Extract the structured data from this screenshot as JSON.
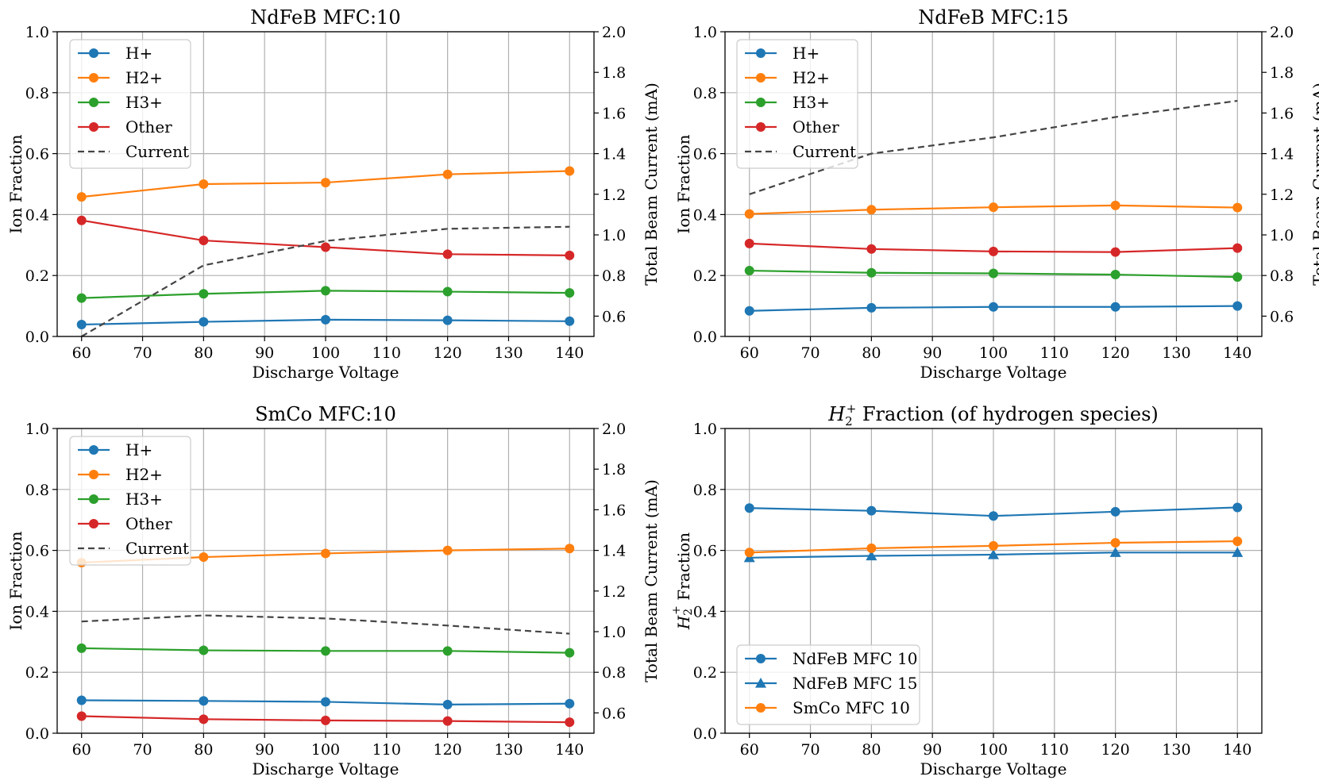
{
  "figure": {
    "panels_count": 4
  },
  "chart_data": [
    {
      "type": "line",
      "title": "NdFeB MFC:10",
      "xlabel": "Discharge Voltage",
      "ylabel": "Ion Fraction",
      "y2label": "Total Beam Current (mA)",
      "xlim": [
        56,
        144
      ],
      "ylim": [
        0,
        1.0
      ],
      "y2lim": [
        0.5,
        2.0
      ],
      "xticks": [
        60,
        70,
        80,
        90,
        100,
        110,
        120,
        130,
        140
      ],
      "yticks": [
        0.0,
        0.2,
        0.4,
        0.6,
        0.8,
        1.0
      ],
      "y2ticks": [
        0.6,
        0.8,
        1.0,
        1.2,
        1.4,
        1.6,
        1.8,
        2.0
      ],
      "grid": true,
      "legend_position": "top-left",
      "x": [
        60,
        80,
        100,
        120,
        140
      ],
      "series": [
        {
          "name": "H+",
          "color": "#1f77b4",
          "marker": "circle",
          "axis": "left",
          "values": [
            0.039,
            0.048,
            0.055,
            0.053,
            0.05
          ]
        },
        {
          "name": "H2+",
          "color": "#ff7f0e",
          "marker": "circle",
          "axis": "left",
          "values": [
            0.458,
            0.5,
            0.505,
            0.532,
            0.543
          ]
        },
        {
          "name": "H3+",
          "color": "#2ca02c",
          "marker": "circle",
          "axis": "left",
          "values": [
            0.126,
            0.14,
            0.15,
            0.147,
            0.143
          ]
        },
        {
          "name": "Other",
          "color": "#d62728",
          "marker": "circle",
          "axis": "left",
          "values": [
            0.381,
            0.315,
            0.293,
            0.27,
            0.266
          ]
        },
        {
          "name": "Current",
          "color": "#444444",
          "marker": "none",
          "dashed": true,
          "axis": "right",
          "values": [
            0.5,
            0.85,
            0.97,
            1.03,
            1.04
          ]
        }
      ]
    },
    {
      "type": "line",
      "title": "NdFeB MFC:15",
      "xlabel": "Discharge Voltage",
      "ylabel": "Ion Fraction",
      "y2label": "Total Beam Current (mA)",
      "xlim": [
        56,
        144
      ],
      "ylim": [
        0,
        1.0
      ],
      "y2lim": [
        0.5,
        2.0
      ],
      "xticks": [
        60,
        70,
        80,
        90,
        100,
        110,
        120,
        130,
        140
      ],
      "yticks": [
        0.0,
        0.2,
        0.4,
        0.6,
        0.8,
        1.0
      ],
      "y2ticks": [
        0.6,
        0.8,
        1.0,
        1.2,
        1.4,
        1.6,
        1.8,
        2.0
      ],
      "grid": true,
      "legend_position": "top-left",
      "x": [
        60,
        80,
        100,
        120,
        140
      ],
      "series": [
        {
          "name": "H+",
          "color": "#1f77b4",
          "marker": "circle",
          "axis": "left",
          "values": [
            0.084,
            0.094,
            0.097,
            0.097,
            0.1
          ]
        },
        {
          "name": "H2+",
          "color": "#ff7f0e",
          "marker": "circle",
          "axis": "left",
          "values": [
            0.402,
            0.416,
            0.424,
            0.43,
            0.423
          ]
        },
        {
          "name": "H3+",
          "color": "#2ca02c",
          "marker": "circle",
          "axis": "left",
          "values": [
            0.216,
            0.209,
            0.207,
            0.203,
            0.195
          ]
        },
        {
          "name": "Other",
          "color": "#d62728",
          "marker": "circle",
          "axis": "left",
          "values": [
            0.305,
            0.287,
            0.279,
            0.277,
            0.29
          ]
        },
        {
          "name": "Current",
          "color": "#444444",
          "marker": "none",
          "dashed": true,
          "axis": "right",
          "values": [
            1.2,
            1.4,
            1.48,
            1.58,
            1.66
          ]
        }
      ]
    },
    {
      "type": "line",
      "title": "SmCo MFC:10",
      "xlabel": "Discharge Voltage",
      "ylabel": "Ion Fraction",
      "y2label": "Total Beam Current (mA)",
      "xlim": [
        56,
        144
      ],
      "ylim": [
        0,
        1.0
      ],
      "y2lim": [
        0.5,
        2.0
      ],
      "xticks": [
        60,
        70,
        80,
        90,
        100,
        110,
        120,
        130,
        140
      ],
      "yticks": [
        0.0,
        0.2,
        0.4,
        0.6,
        0.8,
        1.0
      ],
      "y2ticks": [
        0.6,
        0.8,
        1.0,
        1.2,
        1.4,
        1.6,
        1.8,
        2.0
      ],
      "grid": true,
      "legend_position": "top-left",
      "x": [
        60,
        80,
        100,
        120,
        140
      ],
      "series": [
        {
          "name": "H+",
          "color": "#1f77b4",
          "marker": "circle",
          "axis": "left",
          "values": [
            0.108,
            0.106,
            0.103,
            0.094,
            0.097
          ]
        },
        {
          "name": "H2+",
          "color": "#ff7f0e",
          "marker": "circle",
          "axis": "left",
          "values": [
            0.56,
            0.578,
            0.59,
            0.6,
            0.606
          ]
        },
        {
          "name": "H3+",
          "color": "#2ca02c",
          "marker": "circle",
          "axis": "left",
          "values": [
            0.279,
            0.272,
            0.27,
            0.27,
            0.264
          ]
        },
        {
          "name": "Other",
          "color": "#d62728",
          "marker": "circle",
          "axis": "left",
          "values": [
            0.056,
            0.046,
            0.042,
            0.04,
            0.036
          ]
        },
        {
          "name": "Current",
          "color": "#444444",
          "marker": "none",
          "dashed": true,
          "axis": "right",
          "values": [
            1.05,
            1.08,
            1.065,
            1.03,
            0.99
          ]
        }
      ]
    },
    {
      "type": "line",
      "title_prefix": "H",
      "title_sub": "2",
      "title_sup": "+",
      "title_suffix": " Fraction (of hydrogen species)",
      "xlabel": "Discharge Voltage",
      "ylabel_prefix": "H",
      "ylabel_sub": "2",
      "ylabel_sup": "+",
      "ylabel_suffix": " Fraction",
      "xlim": [
        56,
        144
      ],
      "ylim": [
        0,
        1.0
      ],
      "xticks": [
        60,
        70,
        80,
        90,
        100,
        110,
        120,
        130,
        140
      ],
      "yticks": [
        0.0,
        0.2,
        0.4,
        0.6,
        0.8,
        1.0
      ],
      "grid": true,
      "legend_position": "bottom-left",
      "x": [
        60,
        80,
        100,
        120,
        140
      ],
      "series": [
        {
          "name": "NdFeB MFC 10",
          "color": "#1f77b4",
          "marker": "circle",
          "axis": "left",
          "values": [
            0.739,
            0.73,
            0.713,
            0.727,
            0.741
          ]
        },
        {
          "name": "NdFeB MFC 15",
          "color": "#1f77b4",
          "marker": "triangle",
          "axis": "left",
          "values": [
            0.576,
            0.582,
            0.586,
            0.593,
            0.593
          ]
        },
        {
          "name": "SmCo MFC 10",
          "color": "#ff7f0e",
          "marker": "circle",
          "axis": "left",
          "values": [
            0.593,
            0.607,
            0.615,
            0.625,
            0.63
          ]
        }
      ]
    }
  ]
}
